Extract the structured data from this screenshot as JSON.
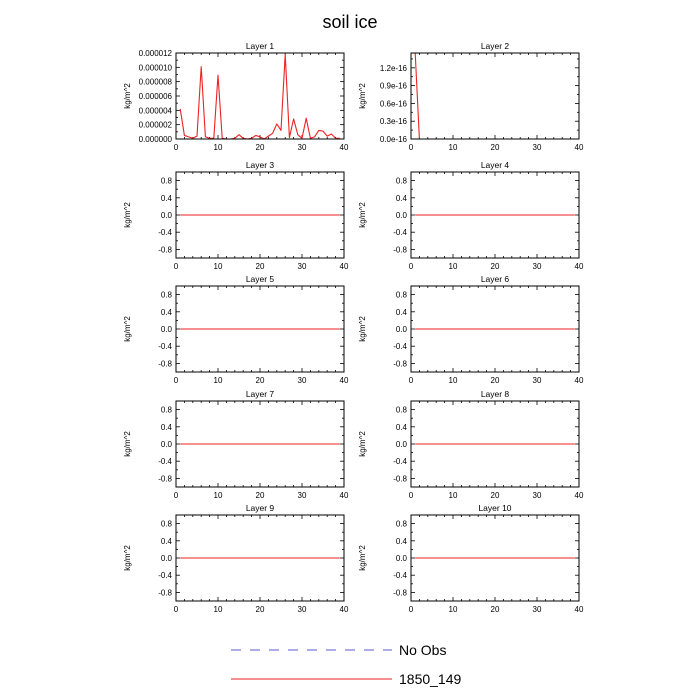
{
  "figure": {
    "title": "soil ice"
  },
  "legend": {
    "position": "bottom-center",
    "entries": [
      {
        "label": "No Obs",
        "color": "#5a5ad0",
        "dash": true
      },
      {
        "label": "1850_149",
        "color": "#ee2222",
        "dash": false
      }
    ]
  },
  "colors": {
    "series": "#ee2222",
    "obs": "#5a5ad0",
    "axis": "#000000"
  },
  "chart_data": [
    {
      "type": "line",
      "title": "Layer 1",
      "ylabel": "kg/m^2",
      "xlim": [
        0,
        40
      ],
      "xticks": [
        0,
        10,
        20,
        30,
        40
      ],
      "ylim": [
        0,
        1.2e-05
      ],
      "yticks": [
        0,
        2e-06,
        4e-06,
        6e-06,
        8e-06,
        1e-05,
        1.2e-05
      ],
      "yticklabels": [
        "0.000000",
        "0.000002",
        "0.000004",
        "0.000006",
        "0.000008",
        "0.000010",
        "0.000012"
      ],
      "series": [
        {
          "name": "1850_149",
          "x": [
            1,
            2,
            3,
            4,
            5,
            6,
            7,
            8,
            9,
            10,
            11,
            12,
            13,
            14,
            15,
            16,
            17,
            18,
            19,
            20,
            21,
            22,
            23,
            24,
            25,
            26,
            27,
            28,
            29,
            30,
            31,
            32,
            33,
            34,
            35,
            36,
            37,
            38,
            39
          ],
          "values": [
            4.2e-06,
            5e-07,
            3e-07,
            1e-07,
            4e-07,
            1.01e-05,
            3e-07,
            1e-07,
            1e-07,
            8.9e-06,
            1e-07,
            0,
            0,
            1e-07,
            6e-07,
            1e-07,
            0,
            1e-07,
            5e-07,
            3e-07,
            0,
            4e-07,
            8e-07,
            2.1e-06,
            1.2e-06,
            1.18e-05,
            2e-07,
            2.8e-06,
            6e-07,
            1e-07,
            2.9e-06,
            1e-07,
            3e-07,
            1.2e-06,
            1.1e-06,
            4e-07,
            7e-07,
            1e-07,
            1e-07
          ]
        }
      ]
    },
    {
      "type": "line",
      "title": "Layer 2",
      "ylabel": "kg/m^2",
      "xlim": [
        0,
        40
      ],
      "xticks": [
        0,
        10,
        20,
        30,
        40
      ],
      "ylim": [
        0,
        1.45e-16
      ],
      "yticks": [
        0,
        3e-17,
        6e-17,
        9e-17,
        1.2e-16
      ],
      "yticklabels": [
        "0.0e-16",
        "0.3e-16",
        "0.6e-16",
        "0.9e-16",
        "1.2e-16"
      ],
      "series": [
        {
          "name": "1850_149",
          "x": [
            1,
            2,
            3,
            4,
            5,
            6,
            7,
            8,
            9,
            10,
            11,
            12,
            13,
            14,
            15,
            16,
            17,
            18,
            19,
            20,
            21,
            22,
            23,
            24,
            25,
            26,
            27,
            28,
            29,
            30,
            31,
            32,
            33,
            34,
            35,
            36,
            37,
            38,
            39
          ],
          "values": [
            1.45e-16,
            0,
            0,
            0,
            0,
            0,
            0,
            0,
            0,
            0,
            0,
            0,
            0,
            0,
            0,
            0,
            0,
            0,
            0,
            0,
            0,
            0,
            0,
            0,
            0,
            0,
            0,
            0,
            0,
            0,
            0,
            0,
            0,
            0,
            0,
            0,
            0,
            0,
            0
          ]
        }
      ]
    },
    {
      "type": "line",
      "title": "Layer 3",
      "ylabel": "kg/m^2",
      "xlim": [
        0,
        40
      ],
      "xticks": [
        0,
        10,
        20,
        30,
        40
      ],
      "ylim": [
        -1,
        1
      ],
      "yticks": [
        -0.8,
        -0.4,
        0,
        0.4,
        0.8
      ],
      "yticklabels": [
        "-0.8",
        "-0.4",
        "0.0",
        "0.4",
        "0.8"
      ],
      "series": [
        {
          "name": "1850_149",
          "x": [
            1,
            39
          ],
          "values": [
            0,
            0
          ]
        }
      ]
    },
    {
      "type": "line",
      "title": "Layer 4",
      "ylabel": "kg/m^2",
      "xlim": [
        0,
        40
      ],
      "xticks": [
        0,
        10,
        20,
        30,
        40
      ],
      "ylim": [
        -1,
        1
      ],
      "yticks": [
        -0.8,
        -0.4,
        0,
        0.4,
        0.8
      ],
      "yticklabels": [
        "-0.8",
        "-0.4",
        "0.0",
        "0.4",
        "0.8"
      ],
      "series": [
        {
          "name": "1850_149",
          "x": [
            1,
            39
          ],
          "values": [
            0,
            0
          ]
        }
      ]
    },
    {
      "type": "line",
      "title": "Layer 5",
      "ylabel": "kg/m^2",
      "xlim": [
        0,
        40
      ],
      "xticks": [
        0,
        10,
        20,
        30,
        40
      ],
      "ylim": [
        -1,
        1
      ],
      "yticks": [
        -0.8,
        -0.4,
        0,
        0.4,
        0.8
      ],
      "yticklabels": [
        "-0.8",
        "-0.4",
        "0.0",
        "0.4",
        "0.8"
      ],
      "series": [
        {
          "name": "1850_149",
          "x": [
            1,
            39
          ],
          "values": [
            0,
            0
          ]
        }
      ]
    },
    {
      "type": "line",
      "title": "Layer 6",
      "ylabel": "kg/m^2",
      "xlim": [
        0,
        40
      ],
      "xticks": [
        0,
        10,
        20,
        30,
        40
      ],
      "ylim": [
        -1,
        1
      ],
      "yticks": [
        -0.8,
        -0.4,
        0,
        0.4,
        0.8
      ],
      "yticklabels": [
        "-0.8",
        "-0.4",
        "0.0",
        "0.4",
        "0.8"
      ],
      "series": [
        {
          "name": "1850_149",
          "x": [
            1,
            39
          ],
          "values": [
            0,
            0
          ]
        }
      ]
    },
    {
      "type": "line",
      "title": "Layer 7",
      "ylabel": "kg/m^2",
      "xlim": [
        0,
        40
      ],
      "xticks": [
        0,
        10,
        20,
        30,
        40
      ],
      "ylim": [
        -1,
        1
      ],
      "yticks": [
        -0.8,
        -0.4,
        0,
        0.4,
        0.8
      ],
      "yticklabels": [
        "-0.8",
        "-0.4",
        "0.0",
        "0.4",
        "0.8"
      ],
      "series": [
        {
          "name": "1850_149",
          "x": [
            1,
            39
          ],
          "values": [
            0,
            0
          ]
        }
      ]
    },
    {
      "type": "line",
      "title": "Layer 8",
      "ylabel": "kg/m^2",
      "xlim": [
        0,
        40
      ],
      "xticks": [
        0,
        10,
        20,
        30,
        40
      ],
      "ylim": [
        -1,
        1
      ],
      "yticks": [
        -0.8,
        -0.4,
        0,
        0.4,
        0.8
      ],
      "yticklabels": [
        "-0.8",
        "-0.4",
        "0.0",
        "0.4",
        "0.8"
      ],
      "series": [
        {
          "name": "1850_149",
          "x": [
            1,
            39
          ],
          "values": [
            0,
            0
          ]
        }
      ]
    },
    {
      "type": "line",
      "title": "Layer 9",
      "ylabel": "kg/m^2",
      "xlim": [
        0,
        40
      ],
      "xticks": [
        0,
        10,
        20,
        30,
        40
      ],
      "ylim": [
        -1,
        1
      ],
      "yticks": [
        -0.8,
        -0.4,
        0,
        0.4,
        0.8
      ],
      "yticklabels": [
        "-0.8",
        "-0.4",
        "0.0",
        "0.4",
        "0.8"
      ],
      "series": [
        {
          "name": "1850_149",
          "x": [
            1,
            39
          ],
          "values": [
            0,
            0
          ]
        }
      ]
    },
    {
      "type": "line",
      "title": "Layer 10",
      "ylabel": "kg/m^2",
      "xlim": [
        0,
        40
      ],
      "xticks": [
        0,
        10,
        20,
        30,
        40
      ],
      "ylim": [
        -1,
        1
      ],
      "yticks": [
        -0.8,
        -0.4,
        0,
        0.4,
        0.8
      ],
      "yticklabels": [
        "-0.8",
        "-0.4",
        "0.0",
        "0.4",
        "0.8"
      ],
      "series": [
        {
          "name": "1850_149",
          "x": [
            1,
            39
          ],
          "values": [
            0,
            0
          ]
        }
      ]
    }
  ]
}
